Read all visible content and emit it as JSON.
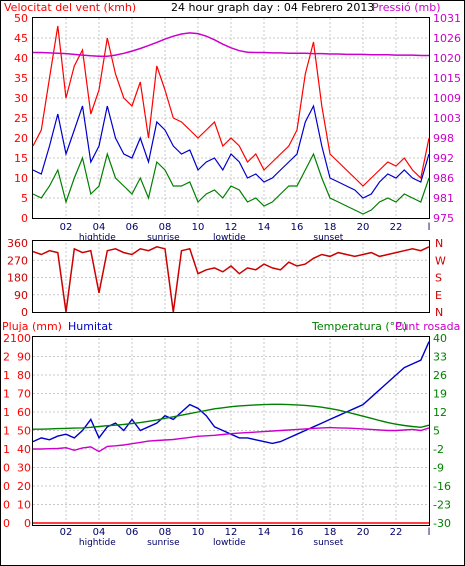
{
  "title": "24 hour graph day : 04 Febrero 2013",
  "colors": {
    "frame": "#000000",
    "grid": "#c8c8c8",
    "wind_gust": "#ff0000",
    "wind_avg": "#0000cc",
    "wind_min": "#008000",
    "pressure": "#cc00cc",
    "direction": "#cc0000",
    "rain": "#ff0000",
    "humidity": "#0000cc",
    "temperature": "#008000",
    "dewpoint": "#cc00cc"
  },
  "x_tick_labels": [
    "02",
    "04",
    "06",
    "08",
    "10",
    "12",
    "14",
    "16",
    "18",
    "20",
    "22",
    "l"
  ],
  "events": [
    {
      "label": "hightide",
      "hour": 3.9
    },
    {
      "label": "sunrise",
      "hour": 7.9
    },
    {
      "label": "lowtide",
      "hour": 11.9
    },
    {
      "label": "sunset",
      "hour": 17.9
    }
  ],
  "chart_data": [
    {
      "type": "line",
      "title": "24 hour graph day : 04 Febrero 2013",
      "left_axis": {
        "label": "Velocitat del vent (kmh)",
        "range": [
          0,
          50
        ],
        "ticks": [
          "0",
          "5",
          "10",
          "15",
          "20",
          "25",
          "30",
          "35",
          "40",
          "45",
          "50"
        ]
      },
      "right_axis": {
        "label": "Pressió (mb)",
        "range": [
          975,
          1030
        ],
        "ticks": [
          "975",
          "981",
          "986",
          "992",
          "998",
          "1003",
          "1009",
          "1015",
          "1020",
          "1026",
          "1031"
        ]
      },
      "x": [
        0,
        0.5,
        1,
        1.5,
        2,
        2.5,
        3,
        3.5,
        4,
        4.5,
        5,
        5.5,
        6,
        6.5,
        7,
        7.5,
        8,
        8.5,
        9,
        9.5,
        10,
        10.5,
        11,
        11.5,
        12,
        12.5,
        13,
        13.5,
        14,
        14.5,
        15,
        15.5,
        16,
        16.5,
        17,
        17.5,
        18,
        18.5,
        19,
        19.5,
        20,
        20.5,
        21,
        21.5,
        22,
        22.5,
        23,
        23.5,
        24
      ],
      "series": [
        {
          "name": "gust",
          "axis": "left",
          "values": [
            18,
            22,
            35,
            48,
            30,
            38,
            42,
            26,
            32,
            45,
            36,
            30,
            28,
            34,
            20,
            38,
            32,
            25,
            24,
            22,
            20,
            22,
            24,
            18,
            20,
            18,
            14,
            16,
            12,
            14,
            16,
            18,
            22,
            36,
            44,
            28,
            16,
            14,
            12,
            10,
            8,
            10,
            12,
            14,
            13,
            15,
            12,
            10,
            20
          ]
        },
        {
          "name": "avg",
          "axis": "left",
          "values": [
            12,
            11,
            18,
            26,
            16,
            22,
            28,
            14,
            18,
            28,
            20,
            16,
            15,
            20,
            14,
            24,
            22,
            18,
            16,
            17,
            12,
            14,
            15,
            12,
            16,
            14,
            10,
            11,
            9,
            10,
            12,
            14,
            16,
            24,
            28,
            18,
            10,
            9,
            8,
            7,
            5,
            6,
            9,
            11,
            10,
            12,
            10,
            9,
            16
          ]
        },
        {
          "name": "min",
          "axis": "left",
          "values": [
            6,
            5,
            8,
            12,
            4,
            10,
            15,
            6,
            8,
            16,
            10,
            8,
            6,
            10,
            5,
            14,
            12,
            8,
            8,
            9,
            4,
            6,
            7,
            5,
            8,
            7,
            4,
            5,
            3,
            4,
            6,
            8,
            8,
            12,
            16,
            10,
            5,
            4,
            3,
            2,
            1,
            2,
            4,
            5,
            4,
            6,
            5,
            4,
            10
          ]
        },
        {
          "name": "pressure",
          "axis": "right",
          "values": [
            1020.5,
            1020.5,
            1020.4,
            1020.3,
            1020.2,
            1020.0,
            1019.8,
            1019.6,
            1019.5,
            1019.5,
            1019.8,
            1020.3,
            1020.9,
            1021.6,
            1022.4,
            1023.3,
            1024.2,
            1025.0,
            1025.6,
            1025.9,
            1025.7,
            1025.0,
            1024.0,
            1022.8,
            1021.8,
            1021.0,
            1020.6,
            1020.5,
            1020.5,
            1020.4,
            1020.4,
            1020.3,
            1020.3,
            1020.3,
            1020.2,
            1020.2,
            1020.1,
            1020.1,
            1020.0,
            1020.0,
            1020.0,
            1019.9,
            1019.9,
            1019.9,
            1019.8,
            1019.8,
            1019.8,
            1019.7,
            1019.7
          ]
        }
      ],
      "grid": true
    },
    {
      "type": "line",
      "left_axis": {
        "range": [
          0,
          360
        ],
        "ticks": [
          "0",
          "90",
          "180",
          "270",
          "360"
        ]
      },
      "right_axis": {
        "ticks": [
          "N",
          "E",
          "S",
          "W",
          "N"
        ]
      },
      "x": [
        0,
        0.5,
        1,
        1.5,
        2,
        2.5,
        3,
        3.5,
        4,
        4.5,
        5,
        5.5,
        6,
        6.5,
        7,
        7.5,
        8,
        8.5,
        9,
        9.5,
        10,
        10.5,
        11,
        11.5,
        12,
        12.5,
        13,
        13.5,
        14,
        14.5,
        15,
        15.5,
        16,
        16.5,
        17,
        17.5,
        18,
        18.5,
        19,
        19.5,
        20,
        20.5,
        21,
        21.5,
        22,
        22.5,
        23,
        23.5,
        24
      ],
      "series": [
        {
          "name": "direction",
          "values": [
            315,
            300,
            320,
            310,
            0,
            330,
            310,
            320,
            100,
            320,
            330,
            310,
            300,
            330,
            320,
            340,
            330,
            0,
            320,
            330,
            200,
            220,
            230,
            210,
            240,
            200,
            230,
            220,
            250,
            230,
            220,
            260,
            240,
            250,
            280,
            300,
            290,
            310,
            300,
            290,
            300,
            310,
            290,
            300,
            310,
            320,
            330,
            320,
            340
          ]
        }
      ],
      "grid": true
    },
    {
      "type": "line",
      "left_axis": {
        "label": "Pluja (mm)",
        "ticks": [
          "0",
          "0",
          "0",
          "0",
          "1",
          "1",
          "1",
          "1",
          "1",
          "2",
          "2"
        ]
      },
      "left_axis_2": {
        "label": "Humitat",
        "range": [
          0,
          100
        ],
        "ticks": [
          "0",
          "10",
          "20",
          "30",
          "40",
          "50",
          "60",
          "70",
          "80",
          "90",
          "100"
        ]
      },
      "right_axis": {
        "label": "Temperatura (°C)",
        "label2": "Punt rosada",
        "range": [
          -30,
          40
        ],
        "ticks": [
          "-30",
          "-23",
          "-16",
          "-9",
          "-2",
          "5",
          "12",
          "19",
          "26",
          "33",
          "40"
        ]
      },
      "x": [
        0,
        0.5,
        1,
        1.5,
        2,
        2.5,
        3,
        3.5,
        4,
        4.5,
        5,
        5.5,
        6,
        6.5,
        7,
        7.5,
        8,
        8.5,
        9,
        9.5,
        10,
        10.5,
        11,
        11.5,
        12,
        12.5,
        13,
        13.5,
        14,
        14.5,
        15,
        15.5,
        16,
        16.5,
        17,
        17.5,
        18,
        18.5,
        19,
        19.5,
        20,
        20.5,
        21,
        21.5,
        22,
        22.5,
        23,
        23.5,
        24
      ],
      "series": [
        {
          "name": "humidity",
          "axis": "left_2",
          "values": [
            44,
            46,
            45,
            47,
            48,
            46,
            50,
            56,
            46,
            52,
            54,
            50,
            56,
            50,
            52,
            54,
            58,
            56,
            60,
            64,
            62,
            58,
            52,
            50,
            48,
            46,
            46,
            45,
            44,
            43,
            44,
            46,
            48,
            50,
            52,
            54,
            56,
            58,
            60,
            62,
            64,
            68,
            72,
            76,
            80,
            84,
            86,
            88,
            98
          ]
        },
        {
          "name": "rain",
          "axis": "left",
          "values": [
            0,
            0,
            0,
            0,
            0,
            0,
            0,
            0,
            0,
            0,
            0,
            0,
            0,
            0,
            0,
            0,
            0,
            0,
            0,
            0,
            0,
            0,
            0,
            0,
            0,
            0,
            0,
            0,
            0,
            0,
            0,
            0,
            0,
            0,
            0,
            0,
            0,
            0,
            0,
            0,
            0,
            0,
            0,
            0,
            0,
            0,
            0,
            0,
            0
          ]
        },
        {
          "name": "temperature",
          "axis": "right",
          "values": [
            5.5,
            5.5,
            5.6,
            5.7,
            5.8,
            5.9,
            6.0,
            6.2,
            6.5,
            6.8,
            7.0,
            7.3,
            7.6,
            8.0,
            8.5,
            9.0,
            9.6,
            10.2,
            10.8,
            11.4,
            12.0,
            12.6,
            13.2,
            13.6,
            14.0,
            14.3,
            14.5,
            14.7,
            14.8,
            14.9,
            14.9,
            14.8,
            14.7,
            14.5,
            14.2,
            13.8,
            13.3,
            12.7,
            12.0,
            11.2,
            10.4,
            9.6,
            8.8,
            8.0,
            7.4,
            6.9,
            6.5,
            6.2,
            7.0
          ]
        },
        {
          "name": "dewpoint",
          "axis": "right",
          "values": [
            -2.0,
            -2.0,
            -1.9,
            -1.8,
            -1.5,
            -2.5,
            -1.6,
            -1.2,
            -3.0,
            -1.0,
            -0.8,
            -0.5,
            0.0,
            0.5,
            1.0,
            1.2,
            1.4,
            1.6,
            2.0,
            2.4,
            2.8,
            3.0,
            3.2,
            3.5,
            3.8,
            4.0,
            4.2,
            4.4,
            4.6,
            4.8,
            5.0,
            5.2,
            5.4,
            5.6,
            5.8,
            6.0,
            6.1,
            6.0,
            5.9,
            5.8,
            5.6,
            5.4,
            5.2,
            5.0,
            5.0,
            5.2,
            5.4,
            5.0,
            6.0
          ]
        }
      ],
      "grid": true
    }
  ]
}
